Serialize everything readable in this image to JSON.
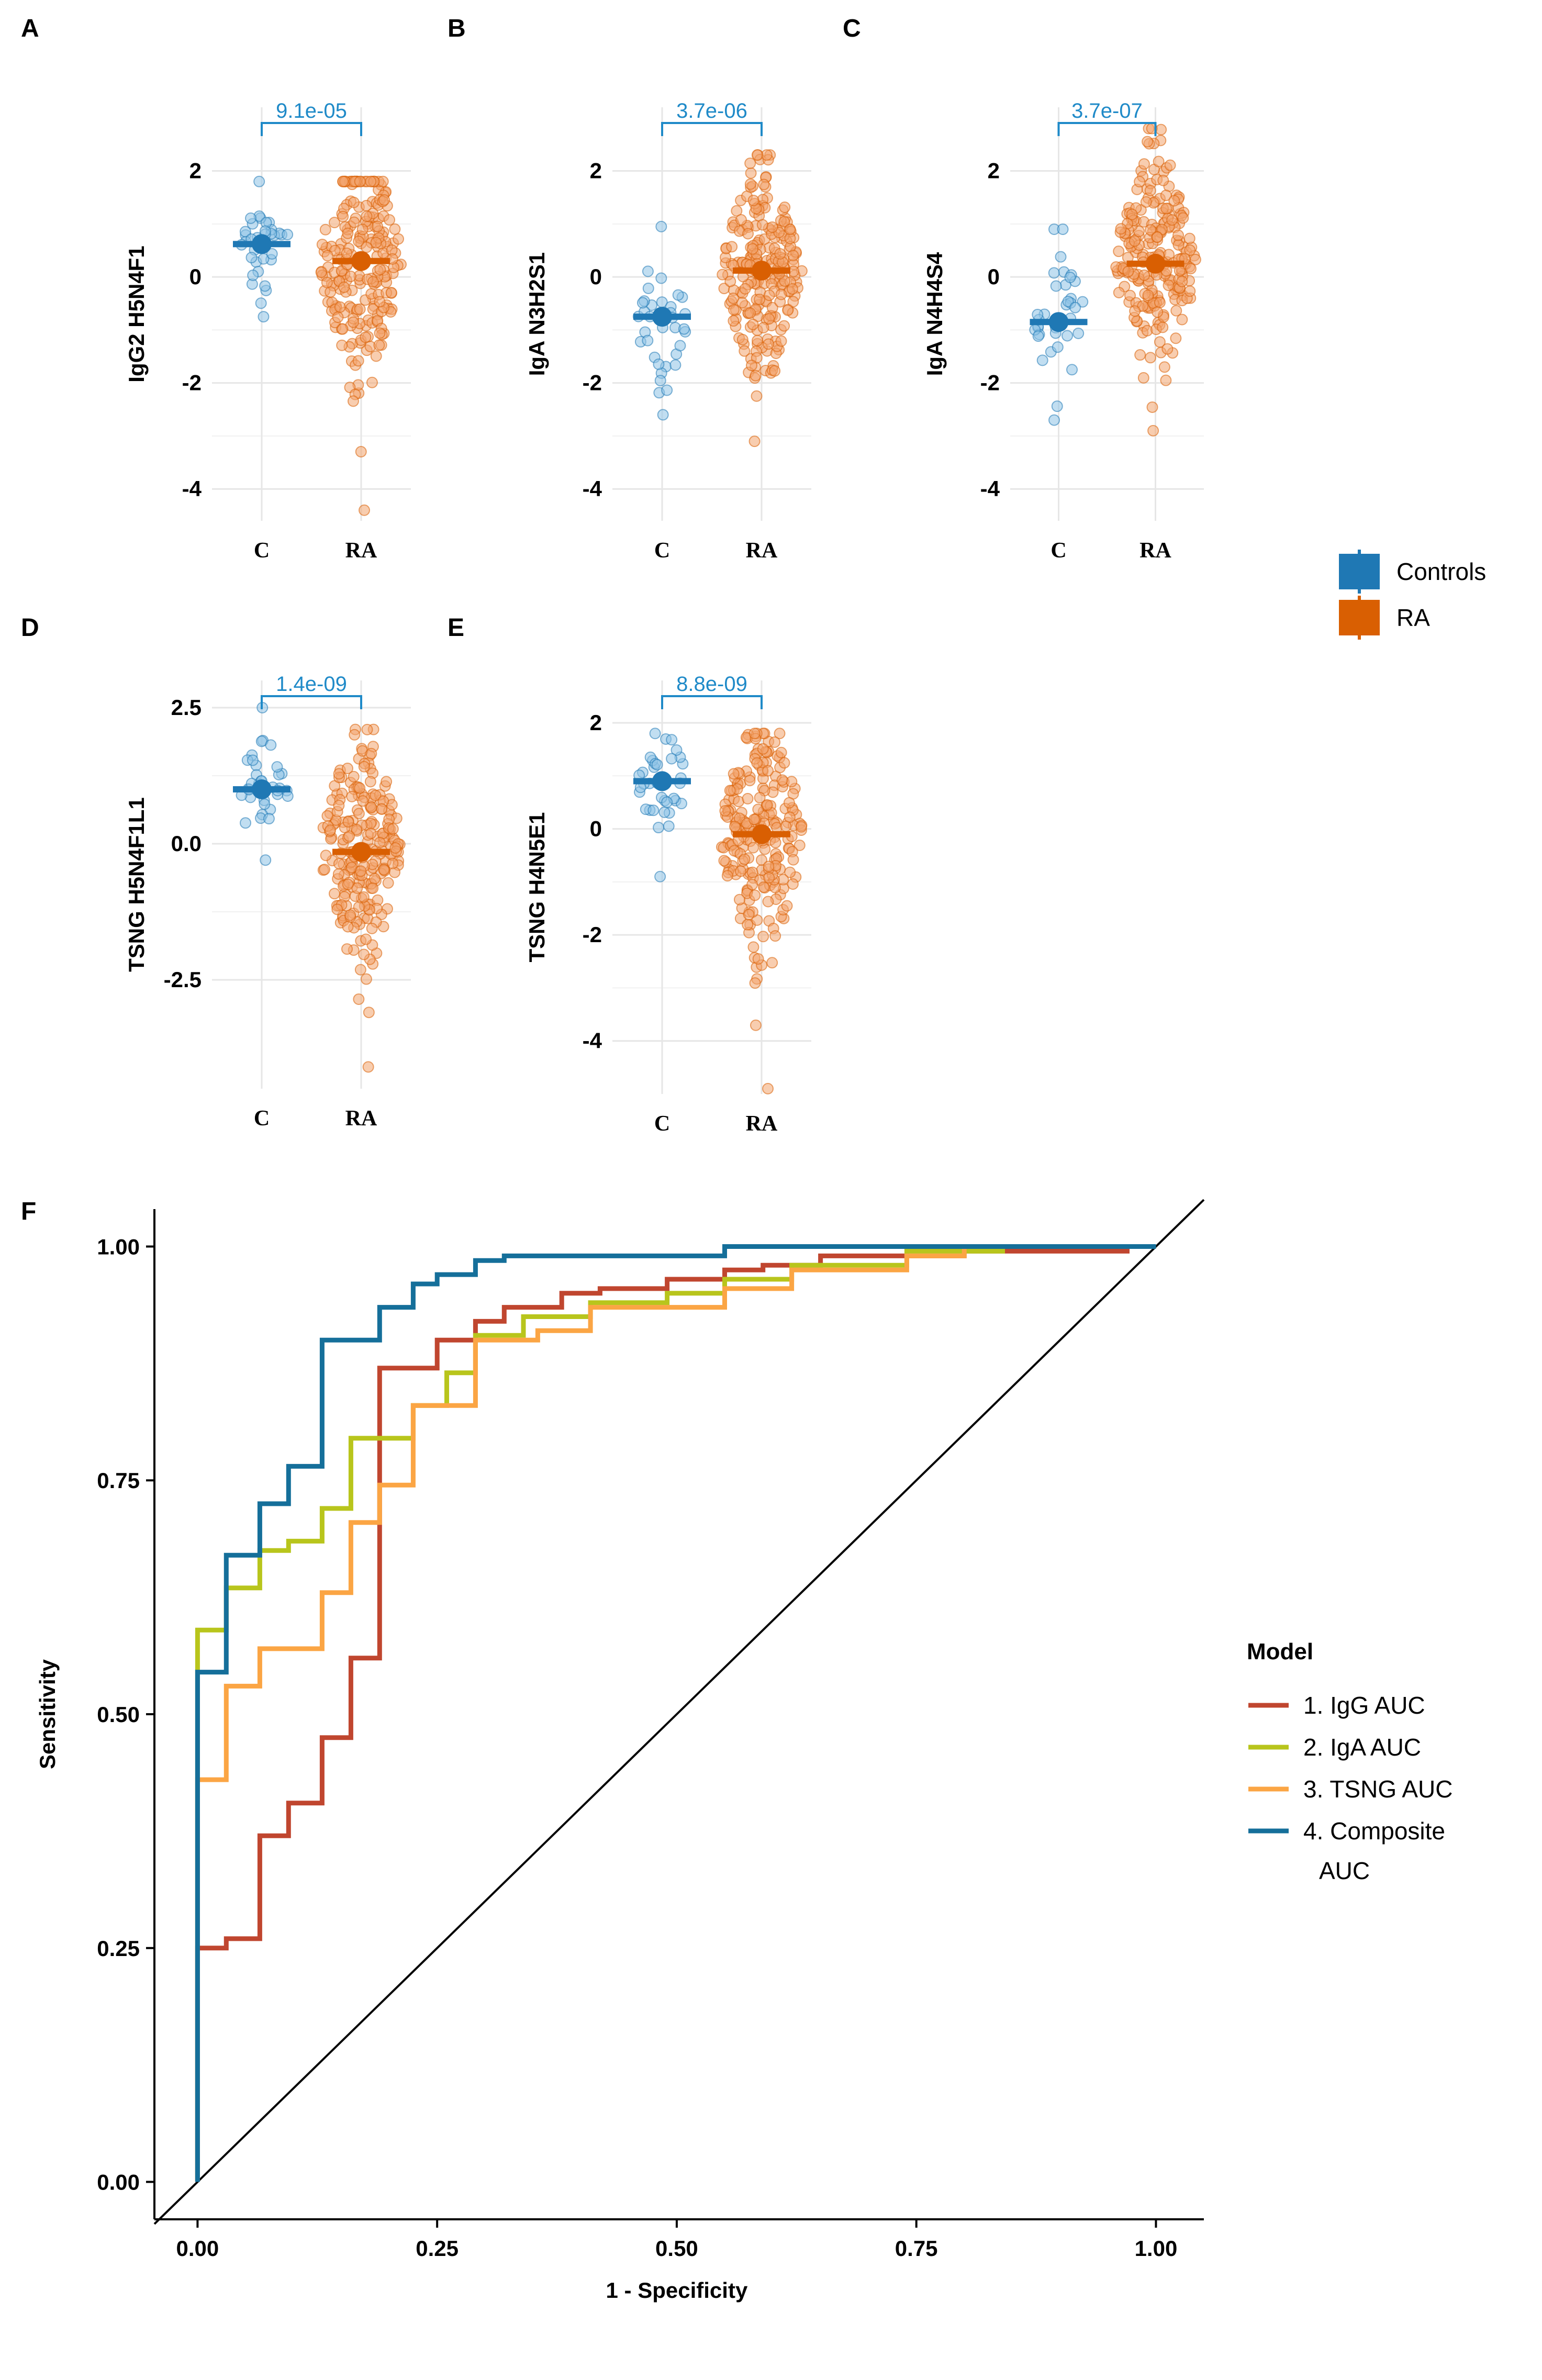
{
  "colors": {
    "controls": "#1f78b4",
    "controls_point": "#8ec3e6",
    "ra": "#d95f02",
    "ra_point": "#f2a46e",
    "bracket": "#1f8ac8",
    "IgG": "#c0462f",
    "IgA": "#b8c51c",
    "TSNG": "#fba544",
    "Composite": "#156f9a"
  },
  "group_legend": {
    "items": [
      {
        "label": "Controls",
        "color": "#1f78b4"
      },
      {
        "label": "RA",
        "color": "#d95f02"
      }
    ]
  },
  "roc_legend": {
    "title": "Model",
    "items": [
      {
        "label": "1. IgG AUC",
        "color": "#c0462f"
      },
      {
        "label": "2. IgA AUC",
        "color": "#b8c51c"
      },
      {
        "label": "3. TSNG AUC",
        "color": "#fba544"
      },
      {
        "label": "4. Composite",
        "label2": "AUC",
        "color": "#156f9a"
      }
    ]
  },
  "chart_data": [
    {
      "panel": "A",
      "type": "scatter",
      "ylabel": "IgG2 H5N4F1",
      "categories": [
        "C",
        "RA"
      ],
      "ylim": [
        -4.6,
        3.2
      ],
      "yticks": [
        2,
        0,
        -2,
        -4
      ],
      "ytick_labels": [
        "2",
        "0",
        "-2",
        "-4"
      ],
      "pvalue": "9.1e-05",
      "groups": [
        {
          "name": "C",
          "median": 0.62,
          "n": 35,
          "min": -0.75,
          "max": 1.8
        },
        {
          "name": "RA",
          "median": 0.3,
          "n": 230,
          "min": -4.4,
          "max": 1.8
        }
      ]
    },
    {
      "panel": "B",
      "type": "scatter",
      "ylabel": "IgA N3H2S1",
      "categories": [
        "C",
        "RA"
      ],
      "ylim": [
        -4.6,
        3.2
      ],
      "yticks": [
        2,
        0,
        -2,
        -4
      ],
      "ytick_labels": [
        "2",
        "0",
        "-2",
        "-4"
      ],
      "pvalue": "3.7e-06",
      "groups": [
        {
          "name": "C",
          "median": -0.75,
          "n": 35,
          "min": -2.6,
          "max": 0.95
        },
        {
          "name": "RA",
          "median": 0.12,
          "n": 230,
          "min": -3.1,
          "max": 2.3
        }
      ]
    },
    {
      "panel": "C",
      "type": "scatter",
      "ylabel": "IgA N4H4S4",
      "categories": [
        "C",
        "RA"
      ],
      "ylim": [
        -4.6,
        3.2
      ],
      "yticks": [
        2,
        0,
        -2,
        -4
      ],
      "ytick_labels": [
        "2",
        "0",
        "-2",
        "-4"
      ],
      "pvalue": "3.7e-07",
      "groups": [
        {
          "name": "C",
          "median": -0.85,
          "n": 35,
          "min": -2.7,
          "max": 0.9
        },
        {
          "name": "RA",
          "median": 0.25,
          "n": 230,
          "min": -2.9,
          "max": 2.8
        }
      ]
    },
    {
      "panel": "D",
      "type": "scatter",
      "ylabel": "TSNG H5N4F1L1",
      "categories": [
        "C",
        "RA"
      ],
      "ylim": [
        -4.5,
        3.0
      ],
      "yticks": [
        2.5,
        0,
        -2.5
      ],
      "ytick_labels": [
        "2.5",
        "0.0",
        "-2.5"
      ],
      "pvalue": "1.4e-09",
      "groups": [
        {
          "name": "C",
          "median": 1.0,
          "n": 35,
          "min": -0.3,
          "max": 2.5
        },
        {
          "name": "RA",
          "median": -0.15,
          "n": 230,
          "min": -4.1,
          "max": 2.1
        }
      ]
    },
    {
      "panel": "E",
      "type": "scatter",
      "ylabel": "TSNG H4N5E1",
      "categories": [
        "C",
        "RA"
      ],
      "ylim": [
        -5.0,
        2.8
      ],
      "yticks": [
        2,
        0,
        -2,
        -4
      ],
      "ytick_labels": [
        "2",
        "0",
        "-2",
        "-4"
      ],
      "pvalue": "8.8e-09",
      "groups": [
        {
          "name": "C",
          "median": 0.9,
          "n": 35,
          "min": -0.9,
          "max": 1.8
        },
        {
          "name": "RA",
          "median": -0.1,
          "n": 230,
          "min": -4.9,
          "max": 1.8
        }
      ]
    },
    {
      "panel": "F",
      "type": "line",
      "title": "",
      "xlabel": "1 - Specificity",
      "ylabel": "Sensitivity",
      "xlim": [
        -0.045,
        1.05
      ],
      "ylim": [
        -0.04,
        1.04
      ],
      "xticks": [
        0,
        0.25,
        0.5,
        0.75,
        1.0
      ],
      "xtick_labels": [
        "0.00",
        "0.25",
        "0.50",
        "0.75",
        "1.00"
      ],
      "yticks": [
        0,
        0.25,
        0.5,
        0.75,
        1.0
      ],
      "ytick_labels": [
        "0.00",
        "0.25",
        "0.50",
        "0.75",
        "1.00"
      ],
      "series": [
        {
          "name": "1. IgG AUC",
          "key": "IgG",
          "points": [
            [
              0,
              0
            ],
            [
              0,
              0.25
            ],
            [
              0.03,
              0.25
            ],
            [
              0.03,
              0.26
            ],
            [
              0.065,
              0.26
            ],
            [
              0.065,
              0.37
            ],
            [
              0.095,
              0.37
            ],
            [
              0.095,
              0.405
            ],
            [
              0.13,
              0.405
            ],
            [
              0.13,
              0.475
            ],
            [
              0.16,
              0.475
            ],
            [
              0.16,
              0.56
            ],
            [
              0.19,
              0.56
            ],
            [
              0.19,
              0.87
            ],
            [
              0.25,
              0.87
            ],
            [
              0.25,
              0.9
            ],
            [
              0.29,
              0.9
            ],
            [
              0.29,
              0.92
            ],
            [
              0.32,
              0.92
            ],
            [
              0.32,
              0.935
            ],
            [
              0.38,
              0.935
            ],
            [
              0.38,
              0.95
            ],
            [
              0.42,
              0.95
            ],
            [
              0.42,
              0.955
            ],
            [
              0.49,
              0.955
            ],
            [
              0.49,
              0.965
            ],
            [
              0.55,
              0.965
            ],
            [
              0.55,
              0.975
            ],
            [
              0.59,
              0.975
            ],
            [
              0.59,
              0.98
            ],
            [
              0.65,
              0.98
            ],
            [
              0.65,
              0.99
            ],
            [
              0.8,
              0.99
            ],
            [
              0.8,
              0.995
            ],
            [
              0.97,
              0.995
            ],
            [
              0.97,
              1.0
            ],
            [
              1.0,
              1.0
            ]
          ]
        },
        {
          "name": "2. IgA AUC",
          "key": "IgA",
          "points": [
            [
              0,
              0
            ],
            [
              0,
              0.59
            ],
            [
              0.03,
              0.59
            ],
            [
              0.03,
              0.635
            ],
            [
              0.065,
              0.635
            ],
            [
              0.065,
              0.675
            ],
            [
              0.095,
              0.675
            ],
            [
              0.095,
              0.685
            ],
            [
              0.13,
              0.685
            ],
            [
              0.13,
              0.72
            ],
            [
              0.16,
              0.72
            ],
            [
              0.16,
              0.795
            ],
            [
              0.225,
              0.795
            ],
            [
              0.225,
              0.83
            ],
            [
              0.26,
              0.83
            ],
            [
              0.26,
              0.865
            ],
            [
              0.29,
              0.865
            ],
            [
              0.29,
              0.905
            ],
            [
              0.34,
              0.905
            ],
            [
              0.34,
              0.925
            ],
            [
              0.41,
              0.925
            ],
            [
              0.41,
              0.94
            ],
            [
              0.49,
              0.94
            ],
            [
              0.49,
              0.95
            ],
            [
              0.55,
              0.95
            ],
            [
              0.55,
              0.965
            ],
            [
              0.62,
              0.965
            ],
            [
              0.62,
              0.98
            ],
            [
              0.74,
              0.98
            ],
            [
              0.74,
              0.995
            ],
            [
              0.84,
              0.995
            ],
            [
              0.84,
              1.0
            ],
            [
              1.0,
              1.0
            ]
          ]
        },
        {
          "name": "3. TSNG AUC",
          "key": "TSNG",
          "points": [
            [
              0,
              0
            ],
            [
              0,
              0.43
            ],
            [
              0.03,
              0.43
            ],
            [
              0.03,
              0.53
            ],
            [
              0.065,
              0.53
            ],
            [
              0.065,
              0.57
            ],
            [
              0.13,
              0.57
            ],
            [
              0.13,
              0.63
            ],
            [
              0.16,
              0.63
            ],
            [
              0.16,
              0.705
            ],
            [
              0.19,
              0.705
            ],
            [
              0.19,
              0.745
            ],
            [
              0.225,
              0.745
            ],
            [
              0.225,
              0.83
            ],
            [
              0.29,
              0.83
            ],
            [
              0.29,
              0.9
            ],
            [
              0.355,
              0.9
            ],
            [
              0.355,
              0.91
            ],
            [
              0.41,
              0.91
            ],
            [
              0.41,
              0.935
            ],
            [
              0.55,
              0.935
            ],
            [
              0.55,
              0.955
            ],
            [
              0.62,
              0.955
            ],
            [
              0.62,
              0.975
            ],
            [
              0.74,
              0.975
            ],
            [
              0.74,
              0.99
            ],
            [
              0.8,
              0.99
            ],
            [
              0.8,
              1.0
            ],
            [
              1.0,
              1.0
            ]
          ]
        },
        {
          "name": "4. Composite AUC",
          "key": "Composite",
          "points": [
            [
              0,
              0
            ],
            [
              0,
              0.545
            ],
            [
              0.03,
              0.545
            ],
            [
              0.03,
              0.67
            ],
            [
              0.065,
              0.67
            ],
            [
              0.065,
              0.725
            ],
            [
              0.095,
              0.725
            ],
            [
              0.095,
              0.765
            ],
            [
              0.13,
              0.765
            ],
            [
              0.13,
              0.9
            ],
            [
              0.19,
              0.9
            ],
            [
              0.19,
              0.935
            ],
            [
              0.225,
              0.935
            ],
            [
              0.225,
              0.96
            ],
            [
              0.25,
              0.96
            ],
            [
              0.25,
              0.97
            ],
            [
              0.29,
              0.97
            ],
            [
              0.29,
              0.985
            ],
            [
              0.32,
              0.985
            ],
            [
              0.32,
              0.99
            ],
            [
              0.55,
              0.99
            ],
            [
              0.55,
              1.0
            ],
            [
              1.0,
              1.0
            ]
          ]
        }
      ],
      "reference_line": [
        [
          0,
          0
        ],
        [
          1,
          1
        ]
      ]
    }
  ]
}
